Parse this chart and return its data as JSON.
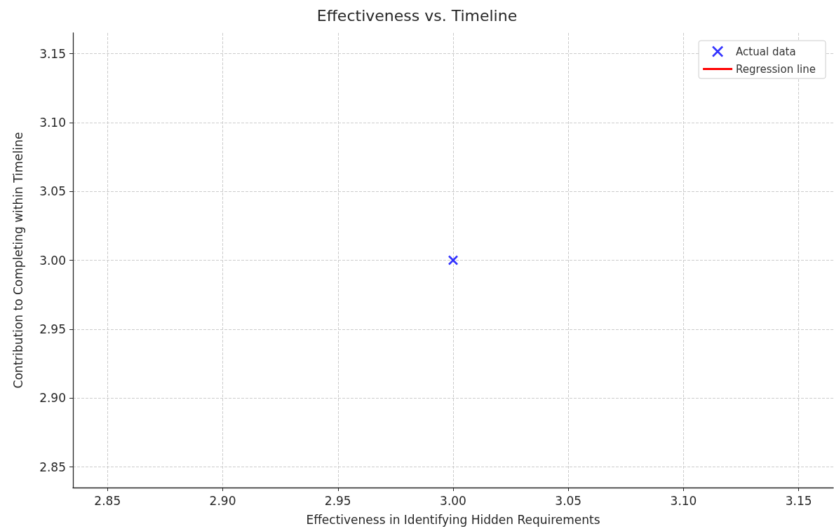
{
  "chart_data": {
    "type": "scatter",
    "title": "Effectiveness vs. Timeline",
    "xlabel": "Effectiveness in Identifying Hidden Requirements",
    "ylabel": "Contribution to Completing within Timeline",
    "x": [
      3.0
    ],
    "series": [
      {
        "name": "Actual data",
        "color": "#0000ff",
        "marker": "cross",
        "values": [
          3.0
        ]
      },
      {
        "name": "Regression line",
        "type": "line",
        "color": "#ff0000",
        "marker": "none",
        "line_style": "solid",
        "values": [
          null
        ]
      }
    ],
    "xlim": [
      2.835,
      3.165
    ],
    "ylim": [
      2.835,
      3.165
    ],
    "xticks": [
      {
        "value": 2.85,
        "label": "2.85"
      },
      {
        "value": 2.9,
        "label": "2.90"
      },
      {
        "value": 2.95,
        "label": "2.95"
      },
      {
        "value": 3.0,
        "label": "3.00"
      },
      {
        "value": 3.05,
        "label": "3.05"
      },
      {
        "value": 3.1,
        "label": "3.10"
      },
      {
        "value": 3.15,
        "label": "3.15"
      }
    ],
    "yticks": [
      {
        "value": 2.85,
        "label": "2.85"
      },
      {
        "value": 2.9,
        "label": "2.90"
      },
      {
        "value": 2.95,
        "label": "2.95"
      },
      {
        "value": 3.0,
        "label": "3.00"
      },
      {
        "value": 3.05,
        "label": "3.05"
      },
      {
        "value": 3.1,
        "label": "3.10"
      },
      {
        "value": 3.15,
        "label": "3.15"
      }
    ],
    "grid": true,
    "legend": "top right"
  }
}
